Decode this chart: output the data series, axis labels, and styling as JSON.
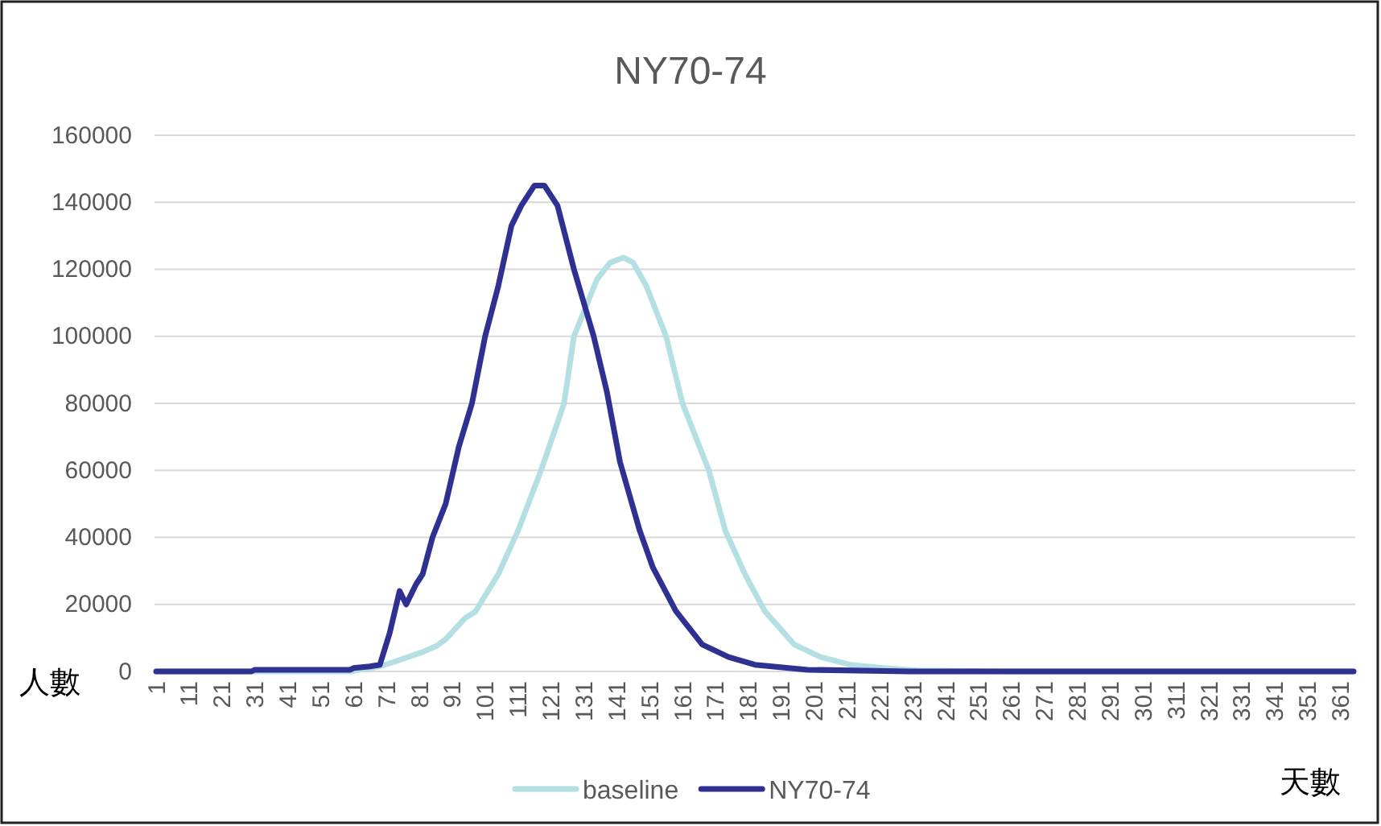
{
  "chart_data": {
    "type": "line",
    "title": "NY70-74",
    "xlabel": "天數",
    "ylabel": "人數",
    "xlim": [
      0.5,
      365.5
    ],
    "xticks": [
      1,
      11,
      21,
      31,
      41,
      51,
      61,
      71,
      81,
      91,
      101,
      111,
      121,
      131,
      141,
      151,
      161,
      171,
      181,
      191,
      201,
      211,
      221,
      231,
      241,
      251,
      261,
      271,
      281,
      291,
      301,
      311,
      321,
      331,
      341,
      351,
      361
    ],
    "ylim": [
      0,
      160000
    ],
    "yticks": [
      0,
      20000,
      40000,
      60000,
      80000,
      100000,
      120000,
      140000,
      160000
    ],
    "grid": "y",
    "legend": "bottom",
    "marker": "none",
    "line_style": "solid",
    "series": [
      {
        "name": "baseline",
        "color": "#b4e0e3",
        "x": [
          1,
          60,
          69,
          72,
          82,
          86,
          89,
          95,
          98,
          105,
          111,
          118,
          125,
          128,
          135,
          139,
          143,
          146,
          150,
          156,
          161,
          169,
          174,
          180,
          186,
          195,
          203,
          212,
          222,
          232,
          260,
          365
        ],
        "values": [
          0,
          0,
          1500,
          2400,
          5800,
          7500,
          9600,
          16000,
          17800,
          29000,
          42000,
          60000,
          80000,
          100000,
          117000,
          122000,
          123500,
          122000,
          115000,
          100000,
          80000,
          60000,
          42000,
          29000,
          18000,
          8000,
          4300,
          2000,
          1000,
          300,
          0,
          0
        ]
      },
      {
        "name": "NY70-74",
        "color": "#2e3192",
        "x": [
          1,
          30,
          31,
          60,
          61,
          66,
          69,
          72,
          75,
          77,
          80,
          82,
          85,
          89,
          93,
          97,
          101,
          105,
          109,
          112,
          116,
          119,
          123,
          128,
          134,
          138,
          142,
          148,
          152,
          159,
          167,
          175,
          183,
          199,
          230,
          365
        ],
        "values": [
          0,
          0,
          500,
          500,
          1000,
          1500,
          2000,
          11500,
          24000,
          20000,
          26000,
          29000,
          40000,
          50000,
          67000,
          80000,
          100000,
          115000,
          133000,
          139000,
          145000,
          145000,
          139000,
          120000,
          100000,
          83500,
          62500,
          42000,
          31000,
          18000,
          8000,
          4300,
          2000,
          500,
          0,
          0
        ]
      }
    ]
  }
}
